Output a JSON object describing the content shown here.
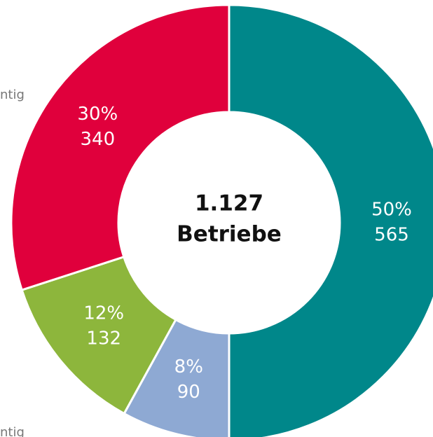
{
  "chart_data": {
    "type": "donut",
    "values": [
      50,
      8,
      12,
      30
    ],
    "value_labels": [
      "50%",
      "8%",
      "12%",
      "30%"
    ],
    "counts": [
      565,
      90,
      132,
      340
    ],
    "colors": [
      "#00878a",
      "#8ea9d3",
      "#8db63c",
      "#e0003c"
    ],
    "center_text": [
      "1.127",
      "Betriebe"
    ],
    "annotations": [
      "ntig",
      "ntig"
    ]
  }
}
